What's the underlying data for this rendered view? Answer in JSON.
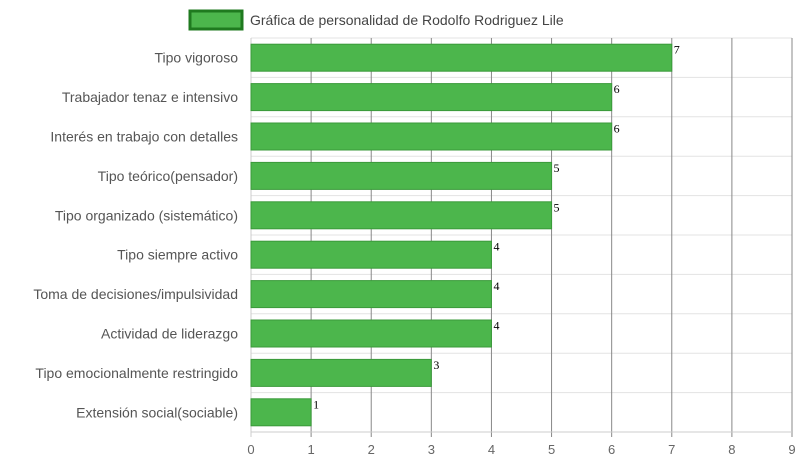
{
  "chart_data": {
    "type": "bar",
    "orientation": "horizontal",
    "legend": {
      "label": "Gráfica de personalidad de Rodolfo Rodriguez Lile",
      "position": "top-center"
    },
    "categories": [
      "Tipo vigoroso",
      "Trabajador tenaz e intensivo",
      "Interés en trabajo con detalles",
      "Tipo teórico(pensador)",
      "Tipo organizado (sistemático)",
      "Tipo siempre activo",
      "Toma de decisiones/impulsividad",
      "Actividad de liderazgo",
      "Tipo emocionalmente restringido",
      "Extensión social(sociable)"
    ],
    "series": [
      {
        "name": "Gráfica de personalidad de Rodolfo Rodriguez Lile",
        "values": [
          7,
          6,
          6,
          5,
          5,
          4,
          4,
          4,
          3,
          1
        ]
      }
    ],
    "xlim": [
      0,
      9
    ],
    "x_ticks": [
      "0",
      "1",
      "2",
      "3",
      "4",
      "5",
      "6",
      "7",
      "8",
      "9"
    ],
    "grid": true,
    "colors": {
      "bar_fill": "#4cb64c",
      "bar_stroke": "#3a9a3a",
      "legend_fill": "#4cb64c",
      "legend_stroke": "#1f7a1f",
      "grid": "#e3e3e3",
      "vgrid": "#888888",
      "axis": "#cccccc"
    }
  }
}
